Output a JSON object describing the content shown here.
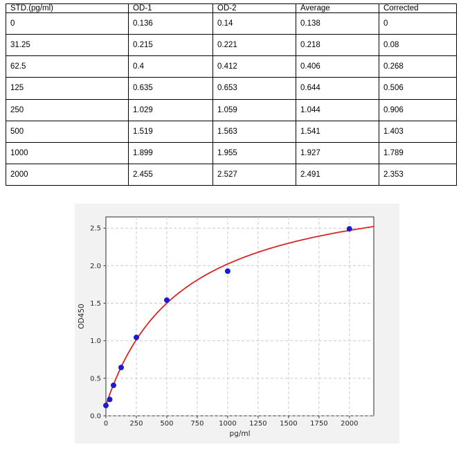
{
  "table": {
    "headers": [
      "STD.(pg/ml)",
      "OD-1",
      "OD-2",
      "Average",
      "Corrected"
    ],
    "rows": [
      [
        "0",
        "0.136",
        "0.14",
        "0.138",
        "0"
      ],
      [
        "31.25",
        "0.215",
        "0.221",
        "0.218",
        "0.08"
      ],
      [
        "62.5",
        "0.4",
        "0.412",
        "0.406",
        "0.268"
      ],
      [
        "125",
        "0.635",
        "0.653",
        "0.644",
        "0.506"
      ],
      [
        "250",
        "1.029",
        "1.059",
        "1.044",
        "0.906"
      ],
      [
        "500",
        "1.519",
        "1.563",
        "1.541",
        "1.403"
      ],
      [
        "1000",
        "1.899",
        "1.955",
        "1.927",
        "1.789"
      ],
      [
        "2000",
        "2.455",
        "2.527",
        "2.491",
        "2.353"
      ]
    ]
  },
  "chart_data": {
    "type": "scatter",
    "title": "",
    "xlabel": "pg/ml",
    "ylabel": "OD450",
    "x": [
      0,
      31.25,
      62.5,
      125,
      250,
      500,
      1000,
      2000
    ],
    "y": [
      0.138,
      0.218,
      0.406,
      0.644,
      1.044,
      1.541,
      1.927,
      2.491
    ],
    "xlim": [
      0,
      2200
    ],
    "ylim": [
      0,
      2.65
    ],
    "xticks": [
      0,
      250,
      500,
      750,
      1000,
      1250,
      1500,
      1750,
      2000
    ],
    "yticks": [
      0.0,
      0.5,
      1.0,
      1.5,
      2.0,
      2.5
    ],
    "grid": true,
    "grid_style": "dashed",
    "legend": "none",
    "fit_curve": {
      "model": "y = y0 + a*x/(b+x)",
      "y0": 0.14,
      "a": 3.057,
      "b": 623.8
    },
    "colors": {
      "points": "#1b1bd0",
      "curve": "#da2423",
      "figure_bg": "#f2f2f2",
      "plot_bg": "#ffffff",
      "grid": "#cbcbcb",
      "spine": "#4d4d4d",
      "tick": "#333333",
      "text": "#262626"
    }
  }
}
